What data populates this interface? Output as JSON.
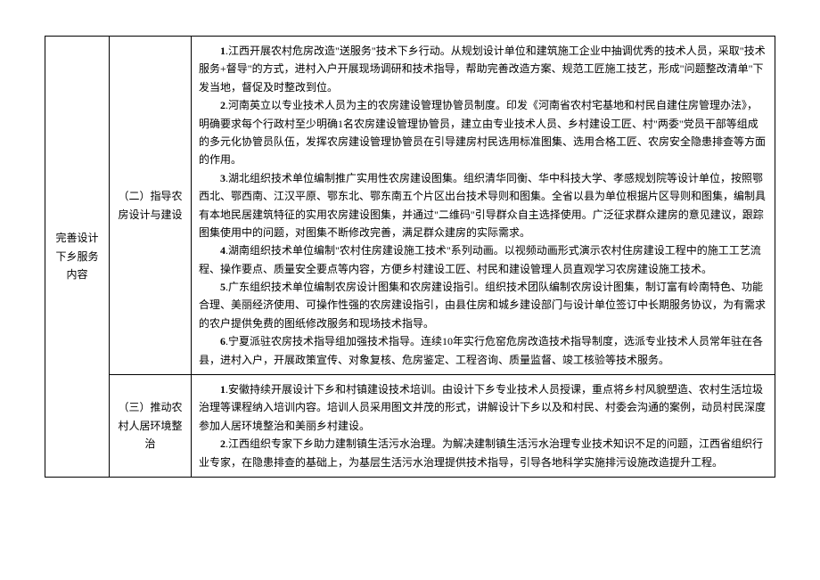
{
  "table": {
    "col1": "完善设计下乡服务内容",
    "row1": {
      "col2": "（二）指导农房设计与建设",
      "items": [
        {
          "n": "1",
          "text": ".江西开展农村危房改造\"送服务\"技术下乡行动。从规划设计单位和建筑施工企业中抽调优秀的技术人员，采取\"技术服务+督导\"的方式，进村入户开展现场调研和技术指导，帮助完善改造方案、规范工匠施工技艺，形成\"问题整改清单\"下发当地，督促及时整改到位。"
        },
        {
          "n": "2",
          "text": ".河南英立以专业技术人员为主的农房建设管理协管员制度。印发《河南省农村宅基地和村民自建住房管理办法》，明确要求每个行政村至少明确1名农房建设管理协管员，建立由专业技术人员、乡村建设工匠、村\"两委\"党员干部等组成的多元化协管员队伍，发挥农房建设管理协管员在引导建房村民选用标准图集、选用合格工匠、农房安全隐患排查等方面的作用。"
        },
        {
          "n": "3",
          "text": ".湖北组织技术单位编制推广实用性农房建设图集。组织清华同衡、华中科技大学、孝感规划院等设计单位，按照鄂西北、鄂西南、江汉平原、鄂东北、鄂东南五个片区出台技术导则和图集。全省以县为单位根据片区导则和图集，编制具有本地民居建筑特征的实用农房建设图集，并通过\"二维码\"引导群众自主选择使用。广泛征求群众建房的意见建议，跟踪图集使用中的问题，对图集不断修改完善，满足群众建房的实际需求。"
        },
        {
          "n": "4",
          "text": ".湖南组织技术单位编制\"农村住房建设施工技术\"系列动画。以视频动画形式演示农村住房建设工程中的施工工艺流程、操作要点、质量安全要点等内容，方便乡村建设工匠、村民和建设管理人员直观学习农房建设施工技术。"
        },
        {
          "n": "5",
          "text": ".广东组织技术单位编制农房设计图集和农房建设指引。组织技术团队编制农房设计图集，制订富有岭南特色、功能合理、美丽经济使用、可操作性强的农房建设指引，由县住房和城乡建设部门与设计单位签订中长期服务协议，为有需求的农户提供免费的图纸修改服务和现场技术指导。"
        },
        {
          "n": "6",
          "text": ".宁夏派驻农房技术指导组加强技术指导。连续10年实行危窑危房改造技术指导制度，选派专业技术人员常年驻在各县，进村入户，开展政策宣传、对象复核、危房鉴定、工程咨询、质量监督、竣工核验等技术服务。"
        }
      ]
    },
    "row2": {
      "col2": "（三）推动农村人居环境整治",
      "items": [
        {
          "n": "1",
          "text": ".安徽持续开展设计下乡和村镇建设技术培训。由设计下乡专业技术人员授课，重点将乡村风貌塑造、农村生活垃圾治理等课程纳入培训内容。培训人员采用图文并茂的形式，讲解设计下乡以及和村民、村委会沟通的案例，动员村民深度参加人居环境整治和美丽乡村建设。"
        },
        {
          "n": "2",
          "text": ".江西组织专家下乡助力建制镇生活污水治理。为解决建制镇生活污水治理专业技术知识不足的问题，江西省组织行业专家，在隐患排查的基础上，为基层生活污水治理提供技术指导，引导各地科学实施排污设施改造提升工程。"
        }
      ]
    }
  }
}
